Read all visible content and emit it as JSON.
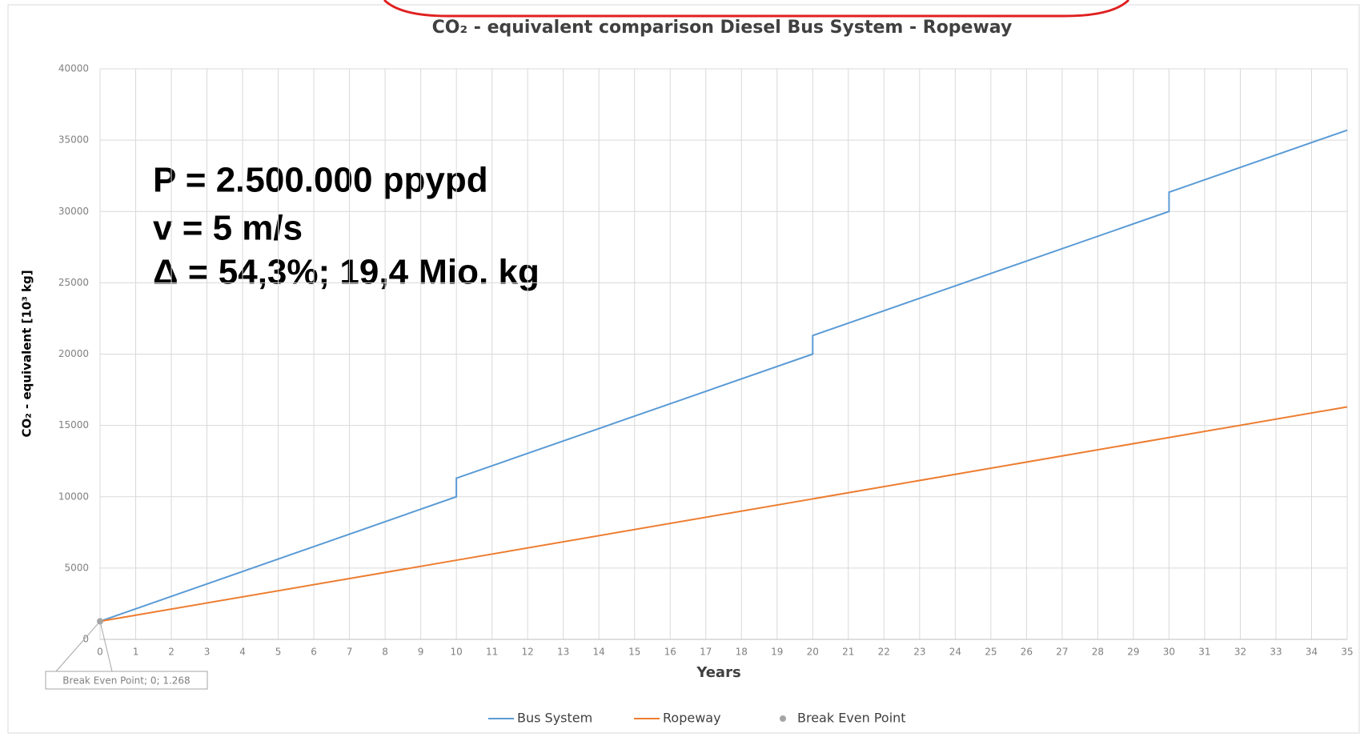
{
  "chart_data": {
    "type": "line",
    "title": "CO₂ - equivalent comparison Diesel Bus System - Ropeway",
    "xlabel": "Years",
    "ylabel": "CO₂ - equivalent [10³ kg]",
    "x": [
      0,
      10,
      10,
      20,
      20,
      30,
      30,
      35
    ],
    "series": [
      {
        "name": "Bus System",
        "color": "#5b9bd5",
        "values": [
          1268,
          10000,
          11300,
          20000,
          21300,
          30000,
          31350,
          35700
        ]
      },
      {
        "name": "Ropeway",
        "color": "#ed7d31",
        "values": [
          1268,
          5550,
          5550,
          9850,
          9850,
          14150,
          14150,
          16300
        ]
      }
    ],
    "break_even": {
      "name": "Break Even Point",
      "color": "#a5a5a5",
      "x": 0,
      "y": 1268,
      "label": "Break Even Point; 0; 1.268"
    },
    "xlim": [
      0,
      35
    ],
    "xticks": [
      0,
      1,
      2,
      3,
      4,
      5,
      6,
      7,
      8,
      9,
      10,
      11,
      12,
      13,
      14,
      15,
      16,
      17,
      18,
      19,
      20,
      21,
      22,
      23,
      24,
      25,
      26,
      27,
      28,
      29,
      30,
      31,
      32,
      33,
      34,
      35
    ],
    "ylim": [
      0,
      40000
    ],
    "yticks": [
      0,
      5000,
      10000,
      15000,
      20000,
      25000,
      30000,
      35000,
      40000
    ],
    "grid": true,
    "legend": "bottom",
    "annotations": [
      "P = 2.500.000 ppypd",
      "v = 5 m/s",
      "Δ = 54,3%; 19,4 Mio. kg"
    ]
  }
}
